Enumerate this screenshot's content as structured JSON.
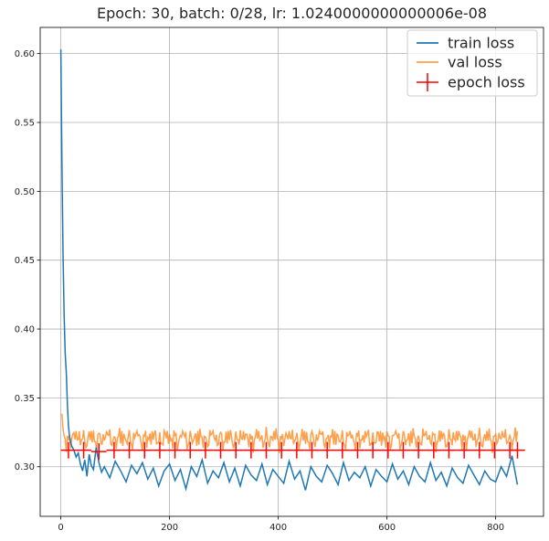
{
  "chart_data": {
    "type": "line",
    "title": "Epoch: 30, batch: 0/28, lr: 1.0240000000000006e-08",
    "xlabel": "",
    "ylabel": "",
    "xlim": [
      -38,
      888
    ],
    "ylim": [
      0.264,
      0.619
    ],
    "xticks": [
      0,
      200,
      400,
      600,
      800
    ],
    "yticks": [
      0.3,
      0.35,
      0.4,
      0.45,
      0.5,
      0.55,
      0.6
    ],
    "xtick_labels": [
      "0",
      "200",
      "400",
      "600",
      "800"
    ],
    "ytick_labels": [
      "0.30",
      "0.35",
      "0.40",
      "0.45",
      "0.50",
      "0.55",
      "0.60"
    ],
    "grid": true,
    "legend_position": "top-right",
    "series": [
      {
        "name": "train loss",
        "color": "#1f77b4",
        "kind": "line",
        "x": [
          0,
          2,
          4,
          6,
          8,
          10,
          12,
          14,
          16,
          18,
          20,
          24,
          28,
          32,
          36,
          40,
          44,
          48,
          52,
          56,
          60,
          65,
          70,
          75,
          80,
          90,
          100,
          110,
          120,
          130,
          140,
          150,
          160,
          170,
          180,
          190,
          200,
          210,
          220,
          230,
          240,
          250,
          260,
          270,
          280,
          290,
          300,
          310,
          320,
          330,
          340,
          350,
          360,
          370,
          380,
          390,
          400,
          410,
          420,
          430,
          440,
          450,
          460,
          470,
          480,
          490,
          500,
          510,
          520,
          530,
          540,
          550,
          560,
          570,
          580,
          590,
          600,
          610,
          620,
          630,
          640,
          650,
          660,
          670,
          680,
          690,
          700,
          710,
          720,
          730,
          740,
          750,
          760,
          770,
          780,
          790,
          800,
          810,
          820,
          830,
          840
        ],
        "y": [
          0.603,
          0.52,
          0.455,
          0.41,
          0.382,
          0.368,
          0.345,
          0.33,
          0.322,
          0.318,
          0.315,
          0.312,
          0.307,
          0.31,
          0.302,
          0.297,
          0.305,
          0.293,
          0.309,
          0.301,
          0.298,
          0.314,
          0.303,
          0.296,
          0.3,
          0.292,
          0.304,
          0.297,
          0.289,
          0.301,
          0.295,
          0.303,
          0.291,
          0.299,
          0.286,
          0.297,
          0.302,
          0.29,
          0.298,
          0.284,
          0.3,
          0.293,
          0.305,
          0.288,
          0.297,
          0.292,
          0.303,
          0.289,
          0.299,
          0.286,
          0.301,
          0.294,
          0.29,
          0.302,
          0.287,
          0.298,
          0.293,
          0.288,
          0.304,
          0.291,
          0.297,
          0.283,
          0.3,
          0.293,
          0.289,
          0.301,
          0.295,
          0.287,
          0.303,
          0.29,
          0.296,
          0.292,
          0.3,
          0.286,
          0.298,
          0.293,
          0.289,
          0.302,
          0.291,
          0.297,
          0.287,
          0.3,
          0.293,
          0.289,
          0.303,
          0.29,
          0.296,
          0.286,
          0.299,
          0.292,
          0.288,
          0.301,
          0.294,
          0.287,
          0.297,
          0.291,
          0.289,
          0.3,
          0.293,
          0.308,
          0.287
        ]
      },
      {
        "name": "val loss",
        "color": "#ff7f0e",
        "kind": "line",
        "period": 28,
        "low": 0.307,
        "high": 0.324,
        "first_value": 0.338,
        "x_start": 0,
        "x_end": 840
      },
      {
        "name": "epoch loss",
        "color": "#ff0000",
        "kind": "errorbar",
        "x": [
          14,
          42,
          70,
          98,
          126,
          154,
          182,
          210,
          238,
          266,
          294,
          322,
          350,
          378,
          406,
          434,
          462,
          490,
          518,
          546,
          574,
          602,
          630,
          658,
          686,
          714,
          742,
          770,
          798,
          826,
          840
        ],
        "y": [
          0.312,
          0.312,
          0.311,
          0.312,
          0.312,
          0.312,
          0.312,
          0.312,
          0.312,
          0.312,
          0.312,
          0.312,
          0.312,
          0.312,
          0.312,
          0.312,
          0.312,
          0.312,
          0.312,
          0.312,
          0.312,
          0.312,
          0.312,
          0.312,
          0.312,
          0.312,
          0.312,
          0.312,
          0.312,
          0.312,
          0.312
        ],
        "yerr": 0.006,
        "xerr": 14
      }
    ]
  }
}
